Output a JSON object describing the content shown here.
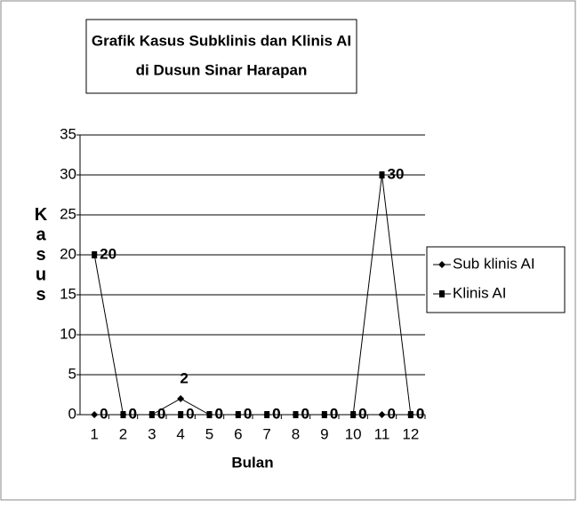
{
  "chart_data": {
    "type": "line",
    "title": [
      "Grafik Kasus Subklinis dan Klinis AI",
      "di Dusun Sinar Harapan"
    ],
    "x_label": "Bulan",
    "y_label": "Kasus",
    "categories": [
      "1",
      "2",
      "3",
      "4",
      "5",
      "6",
      "7",
      "8",
      "9",
      "10",
      "11",
      "12"
    ],
    "series": [
      {
        "name": "Sub klinis AI",
        "color": "#000000",
        "marker": "diamond",
        "values": [
          0,
          0,
          0,
          2,
          0,
          0,
          0,
          0,
          0,
          0,
          0,
          0
        ]
      },
      {
        "name": "Klinis AI",
        "color": "#000000",
        "marker": "square",
        "values": [
          20,
          0,
          0,
          0,
          0,
          0,
          0,
          0,
          0,
          0,
          30,
          0
        ]
      }
    ],
    "ylim": [
      0,
      35
    ],
    "yticks": [
      0,
      5,
      10,
      15,
      20,
      25,
      30,
      35
    ],
    "grid": true,
    "legend": "right"
  }
}
